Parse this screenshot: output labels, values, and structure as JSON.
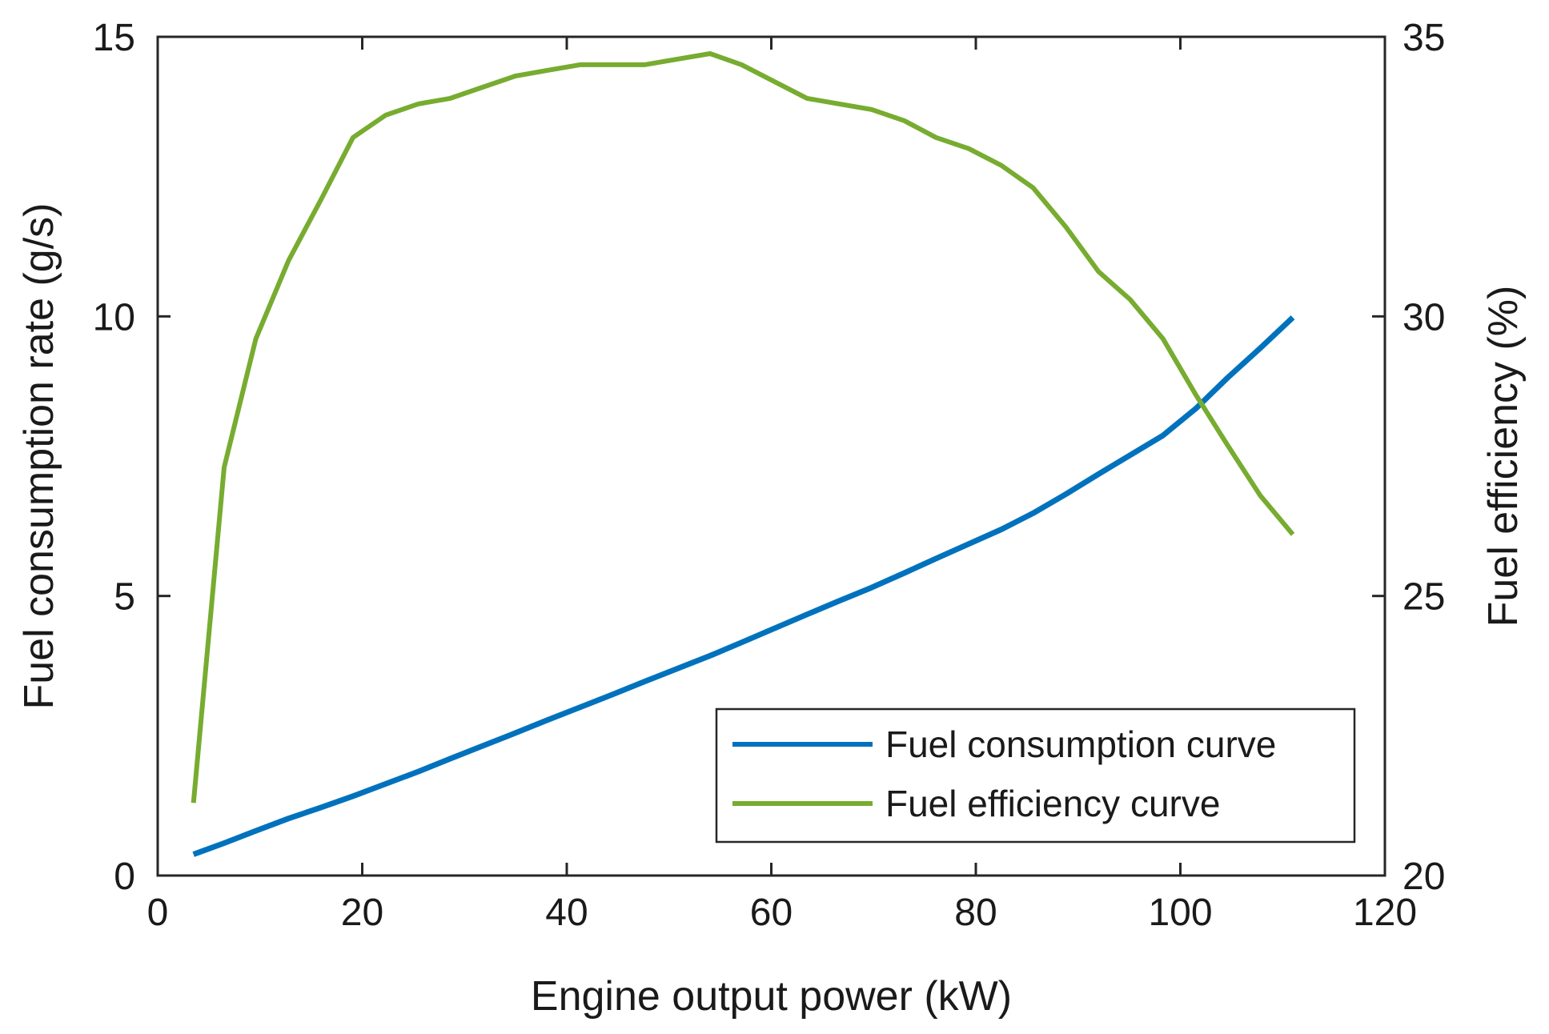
{
  "chart_data": {
    "type": "line",
    "title": "",
    "xlabel": "Engine output power (kW)",
    "ylabel_left": "Fuel consumption rate (g/s)",
    "ylabel_right": "Fuel efficiency (%)",
    "xlim": [
      0,
      120
    ],
    "ylim_left": [
      0,
      15
    ],
    "ylim_right": [
      20,
      35
    ],
    "x_ticks": [
      "0",
      "20",
      "40",
      "60",
      "80",
      "100",
      "120"
    ],
    "y_ticks_left": [
      "0",
      "5",
      "10",
      "15"
    ],
    "y_ticks_right": [
      "20",
      "25",
      "30",
      "35"
    ],
    "grid": false,
    "legend_position": "bottom-right",
    "series": [
      {
        "name": "Fuel consumption curve",
        "axis": "left",
        "color": "#0072BD",
        "x": [
          3.5,
          6.5,
          9.6,
          12.8,
          16.0,
          19.1,
          22.3,
          25.5,
          28.6,
          31.8,
          35.0,
          38.1,
          41.3,
          44.5,
          47.6,
          50.8,
          54.0,
          57.1,
          60.3,
          63.5,
          66.6,
          69.8,
          73.0,
          76.1,
          79.3,
          82.5,
          85.6,
          88.8,
          92.0,
          95.1,
          98.3,
          101.5,
          104.6,
          107.8,
          111.0
        ],
        "values": [
          0.38,
          0.58,
          0.8,
          1.02,
          1.22,
          1.42,
          1.64,
          1.86,
          2.09,
          2.32,
          2.55,
          2.78,
          3.01,
          3.24,
          3.47,
          3.7,
          3.93,
          4.17,
          4.42,
          4.67,
          4.91,
          5.15,
          5.41,
          5.67,
          5.93,
          6.19,
          6.48,
          6.82,
          7.18,
          7.52,
          7.87,
          8.35,
          8.9,
          9.43,
          9.98
        ]
      },
      {
        "name": "Fuel efficiency curve",
        "axis": "right",
        "color": "#77AC30",
        "x": [
          3.5,
          6.5,
          9.6,
          12.8,
          16.0,
          19.1,
          22.3,
          25.5,
          28.6,
          31.8,
          35.0,
          38.1,
          41.3,
          44.5,
          47.6,
          50.8,
          54.0,
          57.1,
          60.3,
          63.5,
          66.6,
          69.8,
          73.0,
          76.1,
          79.3,
          82.5,
          85.6,
          88.8,
          92.0,
          95.1,
          98.3,
          101.5,
          104.6,
          107.8,
          111.0
        ],
        "values": [
          21.3,
          27.3,
          29.6,
          31.0,
          32.1,
          33.2,
          33.6,
          33.8,
          33.9,
          34.1,
          34.3,
          34.4,
          34.5,
          34.5,
          34.5,
          34.6,
          34.7,
          34.5,
          34.2,
          33.9,
          33.8,
          33.7,
          33.5,
          33.2,
          33.0,
          32.7,
          32.3,
          31.6,
          30.8,
          30.3,
          29.6,
          28.6,
          27.7,
          26.8,
          26.1
        ]
      }
    ]
  }
}
